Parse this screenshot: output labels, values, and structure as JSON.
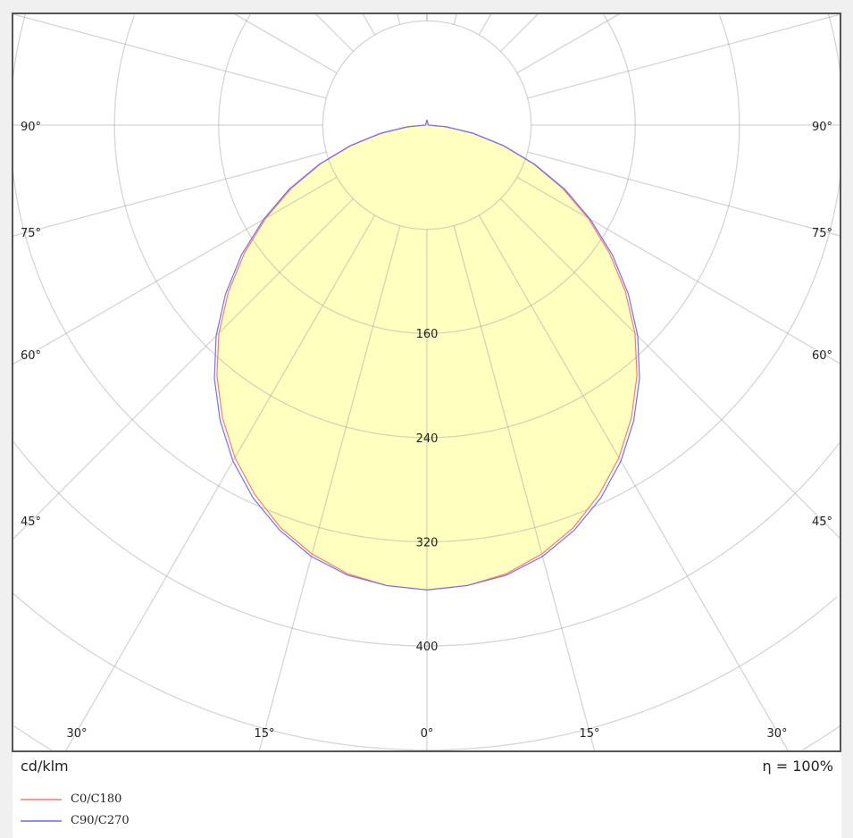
{
  "chart_data": {
    "type": "polar",
    "unit_label": "cd/klm",
    "efficiency_label": "η = 100%",
    "radial_ticks": [
      160,
      240,
      320,
      400
    ],
    "radial_grid_step": 80,
    "radial_max": 560,
    "angle_tick_labels": [
      "0°",
      "15°",
      "30°",
      "45°",
      "60°",
      "75°",
      "90°"
    ],
    "angle_step_deg": 15,
    "grid": true,
    "fill_color": "#ffffc0",
    "legend_position": "bottom-left",
    "series": [
      {
        "name": "C0/C180",
        "color": "#ff7b6b",
        "angles": [
          0,
          5,
          10,
          15,
          20,
          25,
          30,
          35,
          40,
          45,
          50,
          55,
          60,
          65,
          70,
          75,
          80,
          85,
          90,
          180
        ],
        "values": [
          357,
          355,
          350,
          341,
          329,
          313,
          295,
          274,
          251,
          226,
          199,
          171,
          143,
          115,
          87,
          60,
          35,
          14,
          1,
          4
        ]
      },
      {
        "name": "C90/C270",
        "color": "#7070ff",
        "angles": [
          0,
          5,
          10,
          15,
          20,
          25,
          30,
          35,
          40,
          45,
          50,
          55,
          60,
          65,
          70,
          75,
          80,
          85,
          90,
          180
        ],
        "values": [
          357,
          355,
          351,
          343,
          331,
          316,
          298,
          277,
          254,
          229,
          202,
          174,
          145,
          117,
          88,
          61,
          36,
          15,
          1,
          4
        ]
      }
    ]
  }
}
